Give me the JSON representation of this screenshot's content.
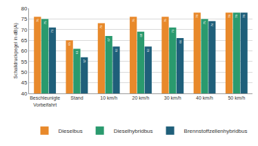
{
  "chart_data": {
    "type": "bar",
    "y_label": "Schalldruckpegel in dB(A)",
    "categories": [
      "Beschleunigte Vorbeifahrt",
      "Stand",
      "10 km/h",
      "20 km/h",
      "30 km/h",
      "40 km/h",
      "50 km/h"
    ],
    "series": [
      {
        "name": "Dieselbus",
        "color": "#e8892b",
        "values": [
          76,
          65,
          73,
          76,
          76,
          78,
          78
        ]
      },
      {
        "name": "Dieselhybridbus",
        "color": "#2a9a6e",
        "values": [
          75,
          61,
          67,
          69,
          71,
          75,
          78
        ]
      },
      {
        "name": "Brennstoffzellenhybridbus",
        "color": "#1f5f7a",
        "values": [
          71,
          57,
          62,
          62,
          66,
          74,
          78
        ]
      }
    ],
    "ylim": [
      40,
      80
    ],
    "yticks": [
      40,
      45,
      50,
      55,
      60,
      65,
      70,
      75,
      80
    ],
    "grid": true,
    "legend": "bottom",
    "data_labels": true
  }
}
